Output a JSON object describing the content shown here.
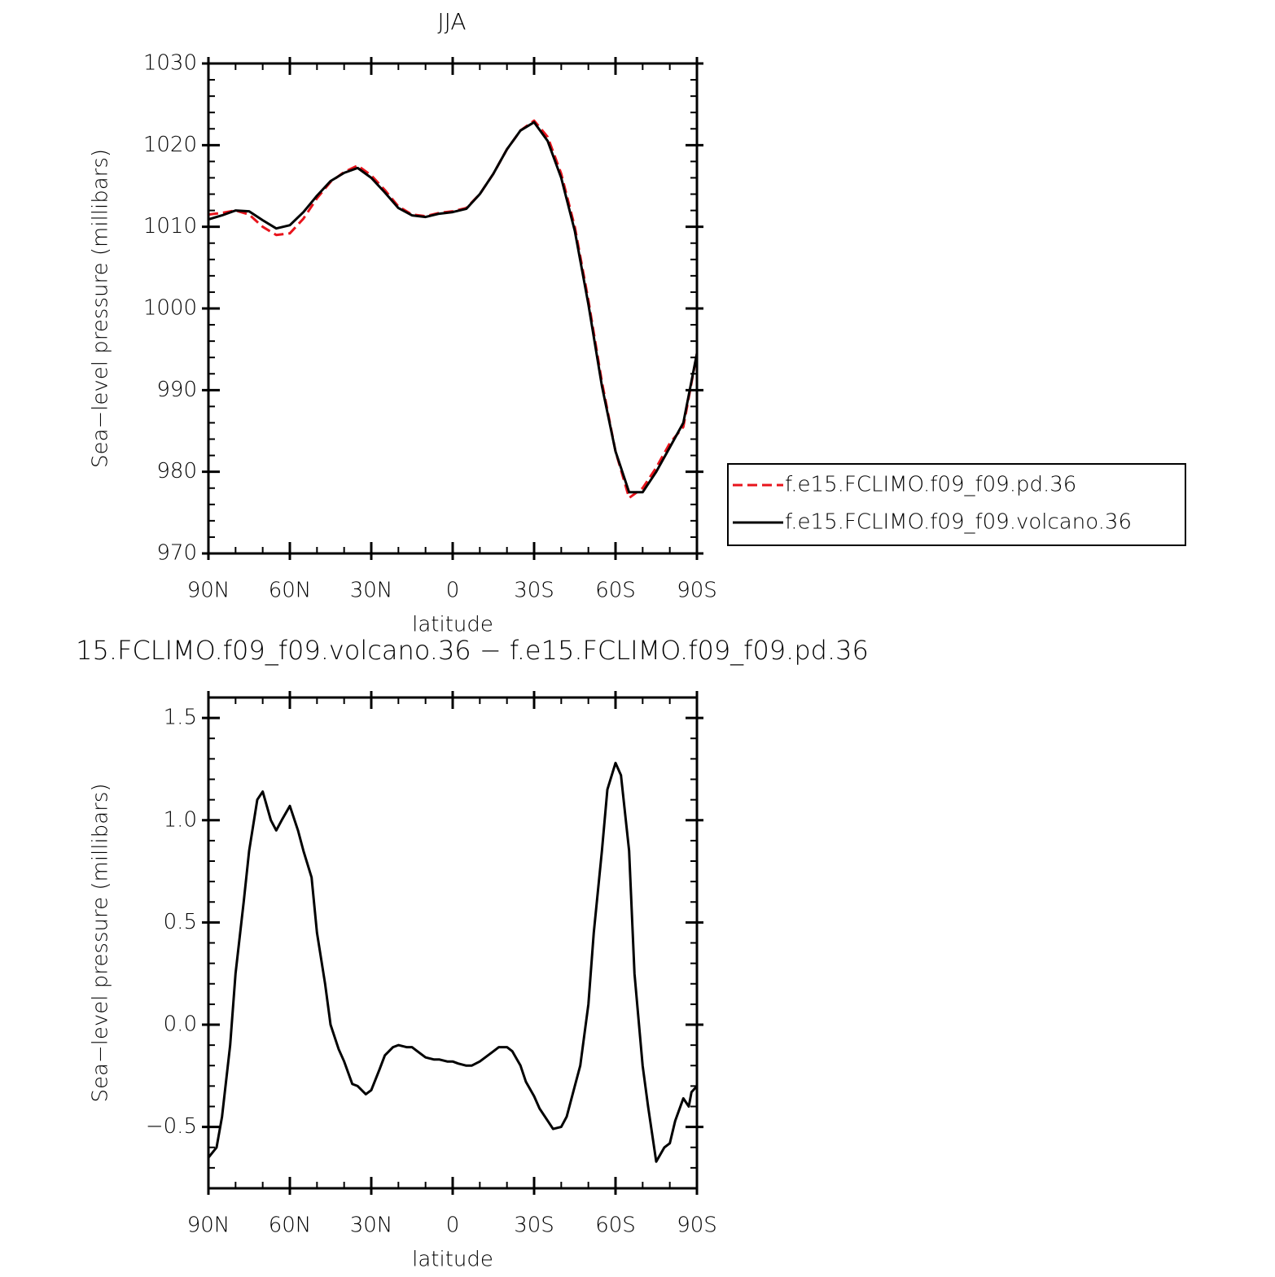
{
  "chart_data": [
    {
      "type": "line",
      "title": "JJA",
      "xlabel": "latitude",
      "ylabel": "Sea−level pressure (millibars)",
      "x": [
        90,
        85,
        80,
        75,
        70,
        65,
        60,
        55,
        50,
        45,
        40,
        35,
        30,
        25,
        20,
        15,
        10,
        5,
        0,
        -5,
        -10,
        -15,
        -20,
        -25,
        -30,
        -35,
        -40,
        -45,
        -50,
        -55,
        -60,
        -65,
        -70,
        -75,
        -80,
        -85,
        -90
      ],
      "series": [
        {
          "name": "f.e15.FCLIMO.f09_f09.pd.36",
          "color": "#e8141c",
          "dash": true,
          "values": [
            1011.5,
            1011.7,
            1012.0,
            1011.5,
            1010.0,
            1009.0,
            1009.2,
            1011.0,
            1013.5,
            1015.5,
            1016.7,
            1017.5,
            1016.3,
            1014.5,
            1012.5,
            1011.5,
            1011.3,
            1011.7,
            1011.9,
            1012.3,
            1014.0,
            1016.5,
            1019.5,
            1021.8,
            1023.0,
            1021.0,
            1016.5,
            1010.0,
            1001.0,
            991.0,
            982.5,
            976.8,
            978.0,
            980.5,
            983.5,
            985.5,
            994.5
          ]
        },
        {
          "name": "f.e15.FCLIMO.f09_f09.volcano.36",
          "color": "#000000",
          "dash": false,
          "values": [
            1010.9,
            1011.4,
            1012.0,
            1011.9,
            1010.8,
            1009.8,
            1010.2,
            1011.8,
            1013.8,
            1015.6,
            1016.6,
            1017.2,
            1016.0,
            1014.2,
            1012.3,
            1011.4,
            1011.2,
            1011.6,
            1011.8,
            1012.2,
            1014.0,
            1016.5,
            1019.5,
            1021.8,
            1022.8,
            1020.5,
            1016.0,
            1009.5,
            1000.5,
            990.5,
            982.5,
            977.5,
            977.5,
            980.0,
            983.0,
            986.0,
            994.5
          ]
        }
      ],
      "xlim": [
        90,
        -90
      ],
      "ylim": [
        970,
        1030
      ],
      "xticks": [
        {
          "value": 90,
          "label": "90N"
        },
        {
          "value": 60,
          "label": "60N"
        },
        {
          "value": 30,
          "label": "30N"
        },
        0,
        {
          "value": -30,
          "label": "30S"
        },
        {
          "value": -60,
          "label": "60S"
        },
        {
          "value": -90,
          "label": "90S"
        }
      ],
      "yticks": [
        970,
        980,
        990,
        1000,
        1010,
        1020,
        1030
      ],
      "legend": "right"
    },
    {
      "type": "line",
      "title": "15.FCLIMO.f09_f09.volcano.36 − f.e15.FCLIMO.f09_f09.pd.36",
      "xlabel": "latitude",
      "ylabel": "Sea−level pressure (millibars)",
      "x": [
        90,
        87,
        85,
        82,
        80,
        77,
        75,
        72,
        70,
        67,
        65,
        63,
        60,
        57,
        55,
        52,
        50,
        47,
        45,
        42,
        40,
        37,
        35,
        32,
        30,
        27,
        25,
        22,
        20,
        17,
        15,
        12,
        10,
        7,
        5,
        2,
        0,
        -2,
        -5,
        -7,
        -10,
        -12,
        -15,
        -17,
        -20,
        -22,
        -25,
        -27,
        -30,
        -32,
        -35,
        -37,
        -40,
        -42,
        -45,
        -47,
        -50,
        -52,
        -55,
        -57,
        -60,
        -62,
        -65,
        -67,
        -70,
        -72,
        -75,
        -78,
        -80,
        -82,
        -85,
        -87,
        -88,
        -90
      ],
      "values": [
        -0.65,
        -0.6,
        -0.45,
        -0.1,
        0.25,
        0.6,
        0.85,
        1.1,
        1.14,
        1.0,
        0.95,
        1.0,
        1.07,
        0.95,
        0.85,
        0.72,
        0.45,
        0.2,
        0.0,
        -0.12,
        -0.18,
        -0.29,
        -0.3,
        -0.34,
        -0.32,
        -0.22,
        -0.15,
        -0.11,
        -0.1,
        -0.11,
        -0.11,
        -0.14,
        -0.16,
        -0.17,
        -0.17,
        -0.18,
        -0.18,
        -0.19,
        -0.2,
        -0.2,
        -0.18,
        -0.16,
        -0.13,
        -0.11,
        -0.11,
        -0.13,
        -0.2,
        -0.28,
        -0.35,
        -0.41,
        -0.47,
        -0.51,
        -0.5,
        -0.45,
        -0.3,
        -0.2,
        0.1,
        0.45,
        0.85,
        1.15,
        1.28,
        1.22,
        0.85,
        0.25,
        -0.2,
        -0.4,
        -0.67,
        -0.6,
        -0.58,
        -0.47,
        -0.36,
        -0.4,
        -0.33,
        -0.3
      ],
      "color": "#000000",
      "xlim": [
        90,
        -90
      ],
      "ylim": [
        -0.8,
        1.6
      ],
      "xticks": [
        {
          "value": 90,
          "label": "90N"
        },
        {
          "value": 60,
          "label": "60N"
        },
        {
          "value": 30,
          "label": "30N"
        },
        0,
        {
          "value": -30,
          "label": "30S"
        },
        {
          "value": -60,
          "label": "60S"
        },
        {
          "value": -90,
          "label": "90S"
        }
      ],
      "yticks": [
        {
          "value": -0.5,
          "label": "−0.5"
        },
        {
          "value": 0,
          "label": "0.0"
        },
        0.5,
        {
          "value": 1,
          "label": "1.0"
        },
        1.5
      ]
    }
  ]
}
